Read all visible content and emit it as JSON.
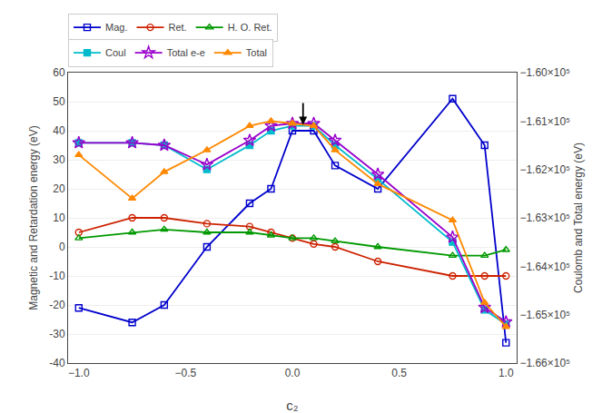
{
  "chart_data": {
    "type": "line",
    "xlabel": "c₂",
    "ylabel": "Magnetic and Retardation energy (eV)",
    "y2label": "Coulomb and Total energy (eV)",
    "x": [
      -1.0,
      -0.75,
      -0.6,
      -0.4,
      -0.2,
      -0.1,
      0.0,
      0.1,
      0.2,
      0.4,
      0.75,
      0.9,
      1.0
    ],
    "series": [
      {
        "name": "Mag.",
        "color": "#0000cc",
        "marker": "square-open",
        "axis": "y",
        "values": [
          -21,
          -26,
          -20,
          0,
          15,
          20,
          40,
          40,
          28,
          20,
          51,
          35,
          -33
        ]
      },
      {
        "name": "Ret.",
        "color": "#cc2200",
        "marker": "circle-open",
        "axis": "y",
        "values": [
          5,
          10,
          10,
          8,
          7,
          5,
          3,
          1,
          0,
          -5,
          -10,
          -10,
          -10
        ]
      },
      {
        "name": "H. O. Ret.",
        "color": "#009900",
        "marker": "triangle-up-open",
        "axis": "y",
        "values": [
          3,
          5,
          6,
          5,
          5,
          4,
          3,
          3,
          2,
          0,
          -3,
          -3,
          -1
        ]
      },
      {
        "name": "Coul",
        "color": "#00bbcc",
        "marker": "square",
        "axis": "y2",
        "values": [
          -161450,
          -161450,
          -161500,
          -162000,
          -161500,
          -161200,
          -161100,
          -161100,
          -161500,
          -162200,
          -163500,
          -164900,
          -165200
        ]
      },
      {
        "name": "Total e-e",
        "color": "#9900cc",
        "marker": "star-open",
        "axis": "y2",
        "values": [
          -161450,
          -161450,
          -161500,
          -161900,
          -161400,
          -161100,
          -161050,
          -161050,
          -161400,
          -162100,
          -163400,
          -164850,
          -165150
        ]
      },
      {
        "name": "Total",
        "color": "#ff8800",
        "marker": "triangle-up",
        "axis": "y2",
        "values": [
          -161700,
          -162600,
          -162050,
          -161600,
          -161100,
          -161000,
          -161050,
          -161100,
          -161600,
          -162300,
          -163050,
          -164750,
          -165250
        ]
      }
    ],
    "xlim": [
      -1.05,
      1.05
    ],
    "xticks": [
      {
        "value": -1.0,
        "label": "−1.0"
      },
      {
        "value": -0.5,
        "label": "−0.5"
      },
      {
        "value": 0.0,
        "label": "0.0"
      },
      {
        "value": 0.5,
        "label": "0.5"
      },
      {
        "value": 1.0,
        "label": "1.0"
      }
    ],
    "ylim": [
      -40,
      60
    ],
    "yticks": [
      -40,
      -30,
      -20,
      -10,
      0,
      10,
      20,
      30,
      40,
      50,
      60
    ],
    "y2lim": [
      -166000,
      -160000
    ],
    "y2ticks": [
      {
        "value": -160000,
        "label": "−1.60×10⁵"
      },
      {
        "value": -161000,
        "label": "−1.61×10⁵"
      },
      {
        "value": -162000,
        "label": "−1.62×10⁵"
      },
      {
        "value": -163000,
        "label": "−1.63×10⁵"
      },
      {
        "value": -164000,
        "label": "−1.64×10⁵"
      },
      {
        "value": -165000,
        "label": "−1.65×10⁵"
      },
      {
        "value": -166000,
        "label": "−1.66×10⁵"
      }
    ],
    "grid": true,
    "legend": "upper left",
    "arrow": {
      "x": 0.05,
      "head_y": 42,
      "tail_y": 50
    }
  }
}
